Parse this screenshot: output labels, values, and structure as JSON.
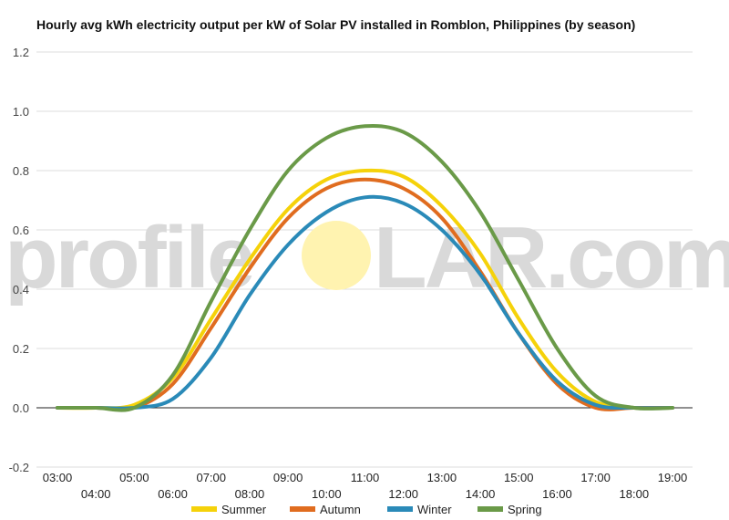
{
  "chart_data": {
    "type": "line",
    "title": "Hourly avg kWh electricity output per kW of Solar PV installed in Romblon, Philippines (by season)",
    "xlabel": "",
    "ylabel": "",
    "ylim": [
      -0.2,
      1.2
    ],
    "yticks": [
      "-0.2",
      "0.0",
      "0.2",
      "0.4",
      "0.6",
      "0.8",
      "1.0",
      "1.2"
    ],
    "x": [
      "03:00",
      "04:00",
      "05:00",
      "06:00",
      "07:00",
      "08:00",
      "09:00",
      "10:00",
      "11:00",
      "12:00",
      "13:00",
      "14:00",
      "15:00",
      "16:00",
      "17:00",
      "18:00",
      "19:00"
    ],
    "grid": true,
    "legend": "bottom",
    "series": [
      {
        "name": "Summer",
        "color": "#f5d20a",
        "values": [
          0,
          0,
          0.01,
          0.1,
          0.3,
          0.5,
          0.67,
          0.77,
          0.8,
          0.78,
          0.68,
          0.52,
          0.3,
          0.12,
          0.02,
          0,
          0
        ]
      },
      {
        "name": "Autumn",
        "color": "#e06c1f",
        "values": [
          0,
          0,
          0,
          0.08,
          0.27,
          0.47,
          0.64,
          0.74,
          0.77,
          0.74,
          0.64,
          0.46,
          0.25,
          0.08,
          0,
          0,
          0
        ]
      },
      {
        "name": "Winter",
        "color": "#2a8ab8",
        "values": [
          0,
          0,
          0,
          0.03,
          0.17,
          0.38,
          0.55,
          0.66,
          0.71,
          0.69,
          0.6,
          0.45,
          0.25,
          0.09,
          0.01,
          0,
          0
        ]
      },
      {
        "name": "Spring",
        "color": "#6a9a48",
        "values": [
          0,
          0,
          0,
          0.11,
          0.36,
          0.6,
          0.8,
          0.91,
          0.95,
          0.93,
          0.83,
          0.66,
          0.43,
          0.2,
          0.04,
          0,
          0
        ]
      }
    ]
  },
  "watermark": {
    "left": "profile",
    "right": "LAR.com",
    "sun_color": "#fff3b0"
  }
}
